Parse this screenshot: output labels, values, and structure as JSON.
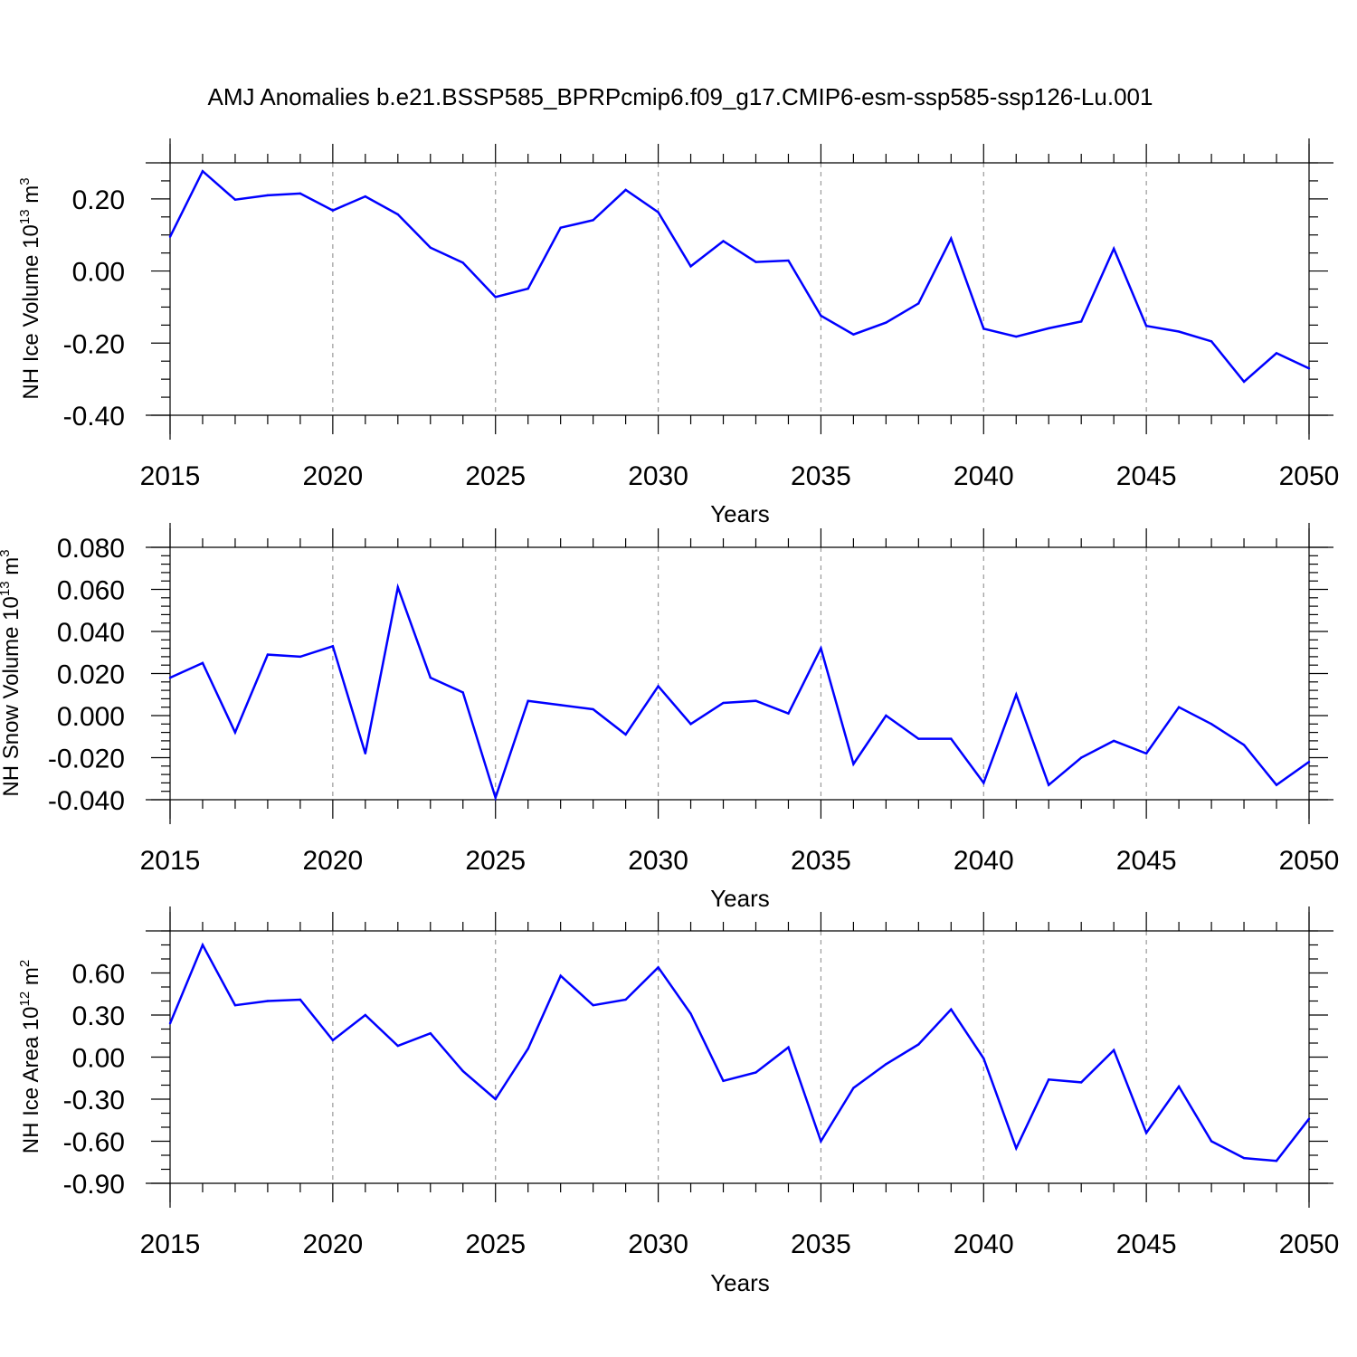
{
  "title": "AMJ Anomalies b.e21.BSSP585_BPRPcmip6.f09_g17.CMIP6-esm-ssp585-ssp126-Lu.001",
  "line_color": "#0000ff",
  "chart_data": [
    {
      "type": "line",
      "ylabel": {
        "text": "NH Ice Volume 10",
        "exp": "13",
        "unit": " m",
        "unit_exp": "3"
      },
      "xlabel": "Years",
      "xlim": [
        2015,
        2050
      ],
      "ylim": [
        -0.4,
        0.3
      ],
      "xticks": [
        2015,
        2020,
        2025,
        2030,
        2035,
        2040,
        2045,
        2050
      ],
      "xtick_labels": [
        "2015",
        "2020",
        "2025",
        "2030",
        "2035",
        "2040",
        "2045",
        "2050"
      ],
      "yticks": [
        0.2,
        0.0,
        -0.2,
        -0.4
      ],
      "ytick_labels": [
        "0.20",
        "0.00",
        "-0.20",
        "-0.40"
      ],
      "y_minor_step": 0.05,
      "x": [
        2015,
        2016,
        2017,
        2018,
        2019,
        2020,
        2021,
        2022,
        2023,
        2024,
        2025,
        2026,
        2027,
        2028,
        2029,
        2030,
        2031,
        2032,
        2033,
        2034,
        2035,
        2036,
        2037,
        2038,
        2039,
        2040,
        2041,
        2042,
        2043,
        2044,
        2045,
        2046,
        2047,
        2048,
        2049,
        2050
      ],
      "values": [
        0.095,
        0.277,
        0.198,
        0.21,
        0.215,
        0.168,
        0.207,
        0.157,
        0.065,
        0.023,
        -0.072,
        -0.049,
        0.12,
        0.141,
        0.225,
        0.163,
        0.013,
        0.083,
        0.025,
        0.029,
        -0.124,
        -0.176,
        -0.143,
        -0.09,
        0.09,
        -0.16,
        -0.182,
        -0.159,
        -0.14,
        0.062,
        -0.152,
        -0.168,
        -0.195,
        -0.307,
        -0.228,
        -0.27
      ]
    },
    {
      "type": "line",
      "ylabel": {
        "text": "NH Snow Volume 10",
        "exp": "13",
        "unit": " m",
        "unit_exp": "3"
      },
      "xlabel": "Years",
      "xlim": [
        2015,
        2050
      ],
      "ylim": [
        -0.04,
        0.08
      ],
      "xticks": [
        2015,
        2020,
        2025,
        2030,
        2035,
        2040,
        2045,
        2050
      ],
      "xtick_labels": [
        "2015",
        "2020",
        "2025",
        "2030",
        "2035",
        "2040",
        "2045",
        "2050"
      ],
      "yticks": [
        0.08,
        0.06,
        0.04,
        0.02,
        0.0,
        -0.02,
        -0.04
      ],
      "ytick_labels": [
        "0.080",
        "0.060",
        "0.040",
        "0.020",
        "0.000",
        "-0.020",
        "-0.040"
      ],
      "y_minor_step": 0.004,
      "x": [
        2015,
        2016,
        2017,
        2018,
        2019,
        2020,
        2021,
        2022,
        2023,
        2024,
        2025,
        2026,
        2027,
        2028,
        2029,
        2030,
        2031,
        2032,
        2033,
        2034,
        2035,
        2036,
        2037,
        2038,
        2039,
        2040,
        2041,
        2042,
        2043,
        2044,
        2045,
        2046,
        2047,
        2048,
        2049,
        2050
      ],
      "values": [
        0.018,
        0.025,
        -0.008,
        0.029,
        0.028,
        0.033,
        -0.018,
        0.061,
        0.018,
        0.011,
        -0.039,
        0.007,
        0.005,
        0.003,
        -0.009,
        0.014,
        -0.004,
        0.006,
        0.007,
        0.001,
        0.032,
        -0.023,
        0.0,
        -0.011,
        -0.011,
        -0.032,
        0.01,
        -0.033,
        -0.02,
        -0.012,
        -0.018,
        0.004,
        -0.004,
        -0.014,
        -0.033,
        -0.022
      ]
    },
    {
      "type": "line",
      "ylabel": {
        "text": "NH Ice Area 10",
        "exp": "12",
        "unit": " m",
        "unit_exp": "2"
      },
      "xlabel": "Years",
      "xlim": [
        2015,
        2050
      ],
      "ylim": [
        -0.9,
        0.9
      ],
      "xticks": [
        2015,
        2020,
        2025,
        2030,
        2035,
        2040,
        2045,
        2050
      ],
      "xtick_labels": [
        "2015",
        "2020",
        "2025",
        "2030",
        "2035",
        "2040",
        "2045",
        "2050"
      ],
      "yticks": [
        0.6,
        0.3,
        0.0,
        -0.3,
        -0.6,
        -0.9
      ],
      "ytick_labels": [
        "0.60",
        "0.30",
        "0.00",
        "-0.30",
        "-0.60",
        "-0.90"
      ],
      "y_minor_step": 0.1,
      "x": [
        2015,
        2016,
        2017,
        2018,
        2019,
        2020,
        2021,
        2022,
        2023,
        2024,
        2025,
        2026,
        2027,
        2028,
        2029,
        2030,
        2031,
        2032,
        2033,
        2034,
        2035,
        2036,
        2037,
        2038,
        2039,
        2040,
        2041,
        2042,
        2043,
        2044,
        2045,
        2046,
        2047,
        2048,
        2049,
        2050
      ],
      "values": [
        0.24,
        0.8,
        0.37,
        0.4,
        0.41,
        0.12,
        0.3,
        0.08,
        0.17,
        -0.1,
        -0.3,
        0.06,
        0.58,
        0.37,
        0.41,
        0.64,
        0.31,
        -0.17,
        -0.11,
        0.07,
        -0.6,
        -0.22,
        -0.05,
        0.09,
        0.34,
        -0.01,
        -0.65,
        -0.16,
        -0.18,
        0.05,
        -0.54,
        -0.21,
        -0.6,
        -0.72,
        -0.74,
        -0.44
      ]
    }
  ]
}
